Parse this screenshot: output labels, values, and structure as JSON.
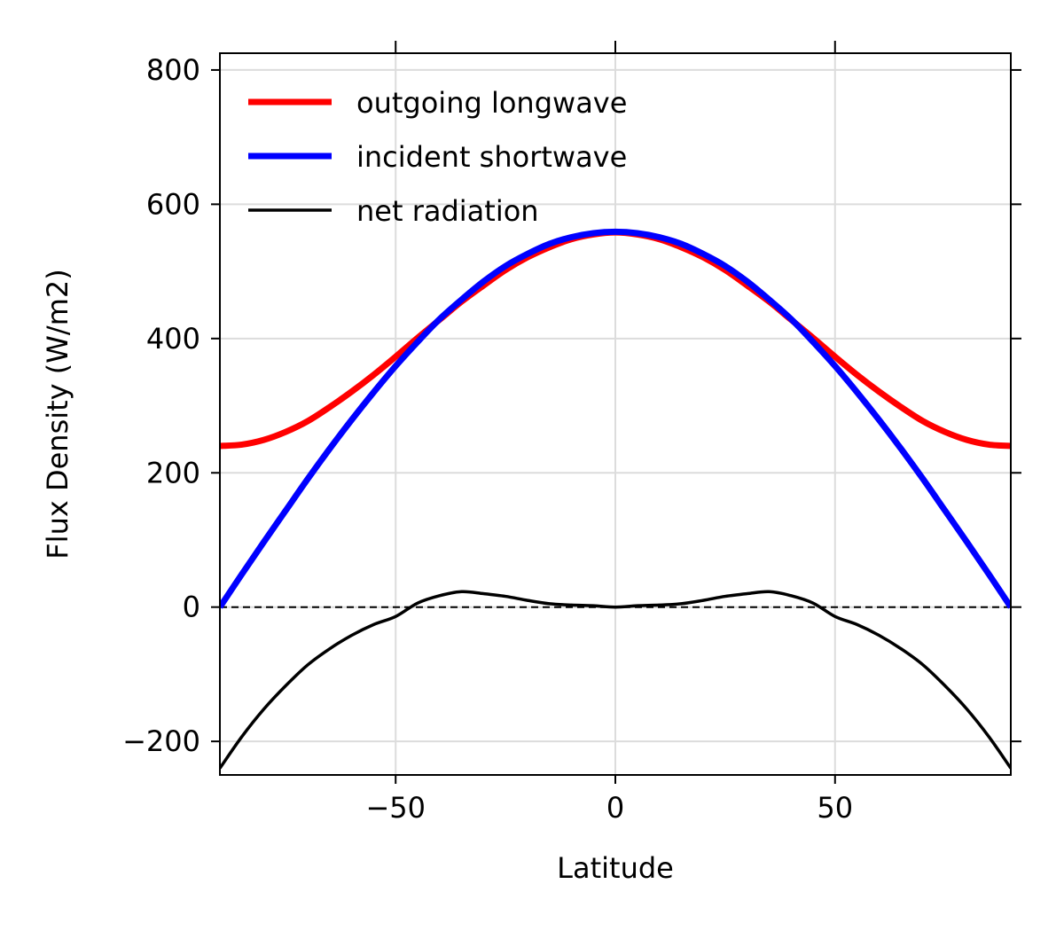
{
  "chart_data": {
    "type": "line",
    "xlabel": "Latitude",
    "ylabel": "Flux Density (W/m2)",
    "xlim": [
      -90,
      90
    ],
    "ylim": [
      -250,
      825
    ],
    "xticks": [
      -50,
      0,
      50
    ],
    "xtick_labels": [
      "−50",
      "0",
      "50"
    ],
    "yticks": [
      -200,
      0,
      200,
      400,
      600,
      800
    ],
    "ytick_labels": [
      "−200",
      "0",
      "200",
      "400",
      "600",
      "800"
    ],
    "grid": true,
    "zero_line": {
      "y": 0,
      "style": "dashed",
      "color": "#000000"
    },
    "legend_position": "upper-left",
    "x": [
      -90,
      -85,
      -80,
      -75,
      -70,
      -65,
      -60,
      -55,
      -50,
      -45,
      -40,
      -35,
      -30,
      -25,
      -20,
      -15,
      -10,
      -5,
      0,
      5,
      10,
      15,
      20,
      25,
      30,
      35,
      40,
      45,
      50,
      55,
      60,
      65,
      70,
      75,
      80,
      85,
      90
    ],
    "series": [
      {
        "name": "outgoing longwave",
        "color": "#ff0000",
        "width": 7,
        "values": [
          240,
          242,
          249,
          261,
          277,
          298,
          321,
          346,
          373,
          401,
          428,
          455,
          479,
          502,
          521,
          536,
          548,
          555,
          558,
          555,
          548,
          536,
          521,
          502,
          479,
          455,
          428,
          401,
          373,
          346,
          321,
          298,
          277,
          261,
          249,
          242,
          240
        ]
      },
      {
        "name": "incident shortwave",
        "color": "#0000ff",
        "width": 7,
        "values": [
          0,
          49,
          97,
          144,
          191,
          236,
          279,
          320,
          359,
          395,
          429,
          458,
          485,
          508,
          526,
          541,
          551,
          557,
          559,
          557,
          551,
          541,
          526,
          508,
          485,
          458,
          429,
          395,
          359,
          320,
          279,
          236,
          191,
          144,
          97,
          49,
          0
        ]
      },
      {
        "name": "net radiation",
        "color": "#000000",
        "width": 3.5,
        "values": [
          -240,
          -193,
          -152,
          -117,
          -86,
          -62,
          -42,
          -26,
          -14,
          6,
          17,
          23,
          20,
          16,
          10,
          5,
          3,
          2,
          0,
          2,
          3,
          5,
          10,
          16,
          20,
          23,
          17,
          6,
          -14,
          -26,
          -42,
          -62,
          -86,
          -117,
          -152,
          -193,
          -240
        ]
      }
    ]
  }
}
